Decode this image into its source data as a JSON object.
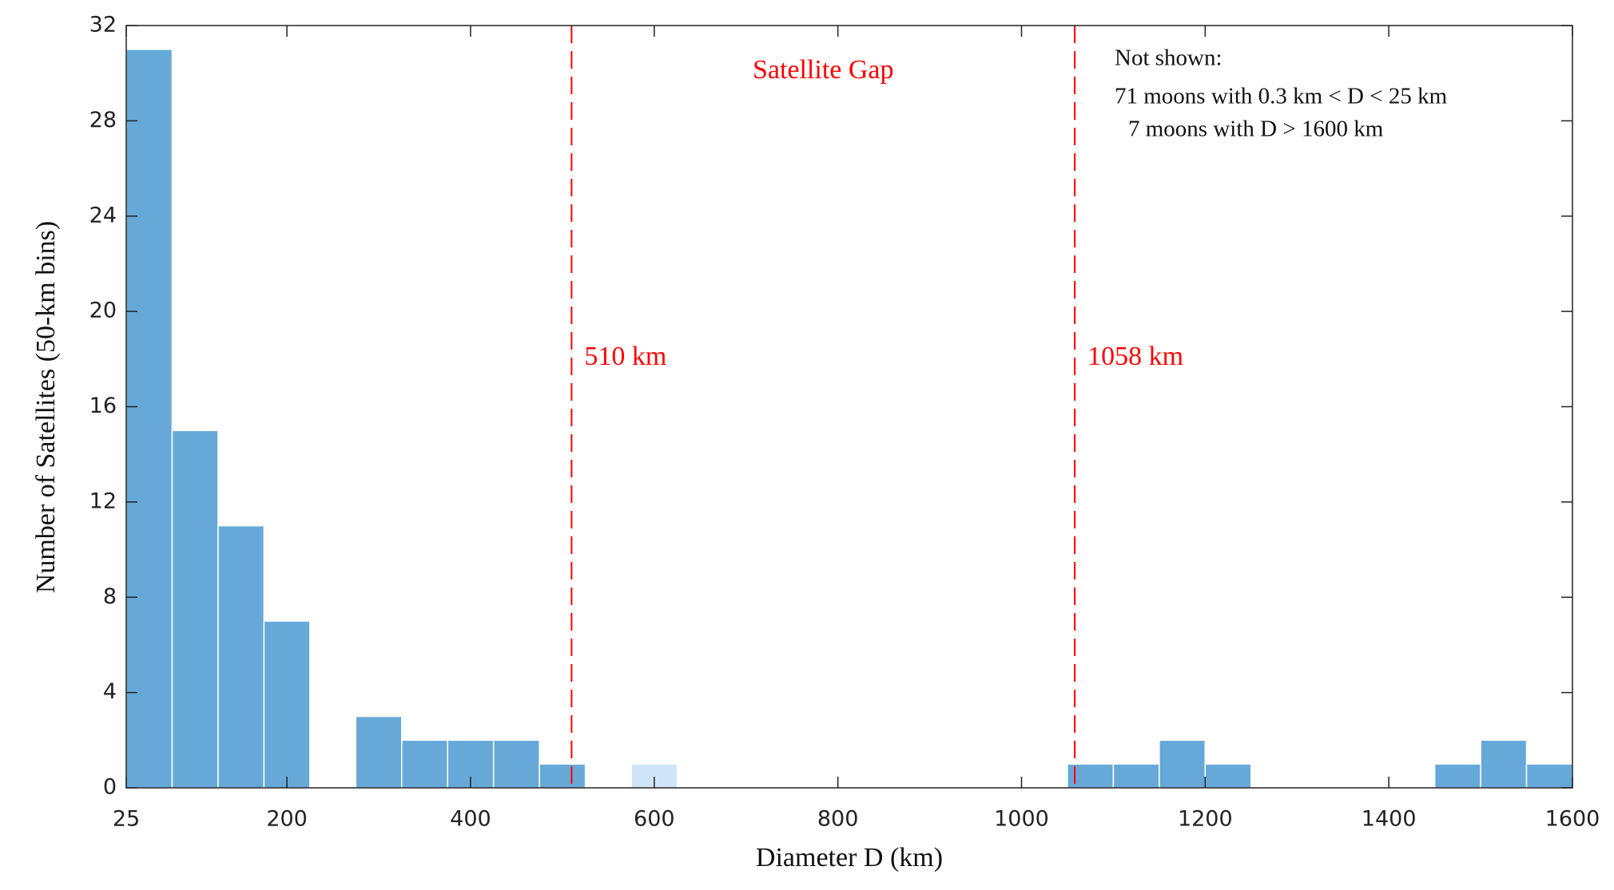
{
  "chart_data": {
    "type": "histogram",
    "x_label": "Diameter D (km)",
    "y_label": "Number of Satellites (50-km bins)",
    "bins": [
      25,
      75,
      125,
      175,
      225,
      275,
      325,
      375,
      425,
      475,
      525,
      575,
      625,
      1050,
      1100,
      1150,
      1200,
      1250,
      1450,
      1500,
      1550,
      1600
    ],
    "values": [
      31,
      15,
      11,
      7,
      0,
      3,
      2,
      2,
      2,
      1,
      0,
      1,
      0,
      1,
      1,
      2,
      1,
      0,
      1,
      2,
      1
    ],
    "colors": [
      "#66a9d8",
      "#66a9d8",
      "#66a9d8",
      "#66a9d8",
      "#66a9d8",
      "#66a9d8",
      "#66a9d8",
      "#66a9d8",
      "#66a9d8",
      "#66a9d8",
      "#66a9d8",
      "#cfe4f7",
      "#66a9d8",
      "#66a9d8",
      "#66a9d8",
      "#66a9d8",
      "#66a9d8",
      "#66a9d8",
      "#66a9d8",
      "#66a9d8",
      "#66a9d8"
    ],
    "xlim": [
      25,
      1600
    ],
    "xticks": [
      25,
      200,
      400,
      600,
      800,
      1000,
      1200,
      1400,
      1600
    ],
    "ylim": [
      0,
      32
    ],
    "yticks": [
      0,
      4,
      8,
      12,
      16,
      20,
      24,
      28,
      32
    ],
    "vlines": [
      {
        "x": 510,
        "label": "510 km",
        "color": "#ff0000"
      },
      {
        "x": 1058,
        "label": "1058 km",
        "color": "#ff0000"
      }
    ],
    "gap_label": "Satellite Gap",
    "note": [
      "Not shown:",
      "71 moons with 0.3 km < D < 25 km",
      "7 moons with D > 1600 km"
    ]
  }
}
